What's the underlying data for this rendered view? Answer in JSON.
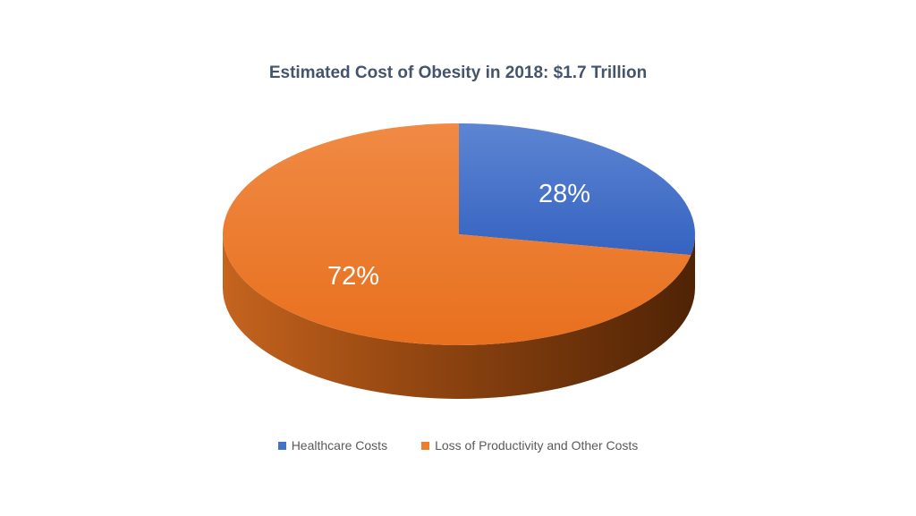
{
  "chart_data": {
    "type": "pie",
    "title": "Estimated Cost of Obesity in 2018: $1.7 Trillion",
    "slices": [
      {
        "label": "Healthcare Costs",
        "value": 28,
        "data_label": "28%",
        "color": "#4472c4"
      },
      {
        "label": "Loss of Productivity and Other Costs",
        "value": 72,
        "data_label": "72%",
        "color": "#ed7d31"
      }
    ],
    "legend_position": "bottom",
    "style": "3d"
  }
}
